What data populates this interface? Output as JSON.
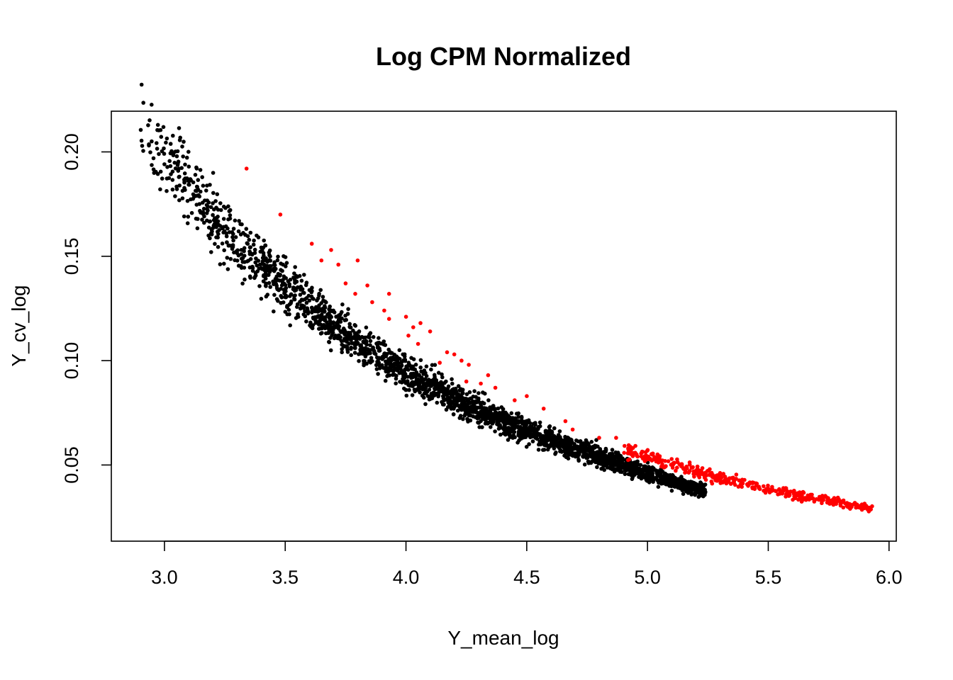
{
  "chart_data": {
    "type": "scatter",
    "title": "Log CPM Normalized",
    "xlabel": "Y_mean_log",
    "ylabel": "Y_cv_log",
    "xlim": [
      2.78,
      6.03
    ],
    "ylim": [
      0.0135,
      0.2195
    ],
    "xticks": [
      "3.0",
      "3.5",
      "4.0",
      "4.5",
      "5.0",
      "5.5",
      "6.0"
    ],
    "yticks": [
      "0.05",
      "0.10",
      "0.15",
      "0.20"
    ],
    "grid": false,
    "legend": "none",
    "series": [
      {
        "color": "#000000",
        "x_range": [
          2.9,
          5.24
        ],
        "trend": [
          [
            2.9,
            0.216
          ],
          [
            3.0,
            0.2
          ],
          [
            3.2,
            0.168
          ],
          [
            3.4,
            0.145
          ],
          [
            3.6,
            0.126
          ],
          [
            3.8,
            0.109
          ],
          [
            4.0,
            0.094
          ],
          [
            4.2,
            0.082
          ],
          [
            4.4,
            0.071
          ],
          [
            4.6,
            0.062
          ],
          [
            4.8,
            0.054
          ],
          [
            5.0,
            0.046
          ],
          [
            5.24,
            0.037
          ]
        ]
      },
      {
        "color": "#ff0000",
        "points": [
          [
            3.34,
            0.192
          ],
          [
            3.48,
            0.17
          ],
          [
            3.61,
            0.156
          ],
          [
            3.69,
            0.153
          ],
          [
            3.65,
            0.148
          ],
          [
            3.8,
            0.148
          ],
          [
            3.72,
            0.146
          ],
          [
            3.75,
            0.137
          ],
          [
            3.84,
            0.136
          ],
          [
            3.79,
            0.132
          ],
          [
            3.86,
            0.128
          ],
          [
            3.93,
            0.132
          ],
          [
            3.91,
            0.124
          ],
          [
            3.93,
            0.12
          ],
          [
            4.0,
            0.121
          ],
          [
            4.03,
            0.116
          ],
          [
            4.01,
            0.112
          ],
          [
            4.06,
            0.118
          ],
          [
            4.1,
            0.114
          ],
          [
            4.05,
            0.108
          ],
          [
            4.17,
            0.104
          ],
          [
            4.2,
            0.103
          ],
          [
            4.23,
            0.1
          ],
          [
            4.26,
            0.098
          ],
          [
            4.14,
            0.099
          ],
          [
            4.25,
            0.09
          ],
          [
            4.34,
            0.093
          ],
          [
            4.31,
            0.089
          ],
          [
            4.37,
            0.087
          ],
          [
            4.45,
            0.081
          ],
          [
            4.5,
            0.083
          ],
          [
            4.57,
            0.077
          ],
          [
            4.66,
            0.071
          ],
          [
            4.69,
            0.067
          ],
          [
            4.8,
            0.063
          ],
          [
            4.87,
            0.063
          ],
          [
            4.92,
            0.058
          ]
        ],
        "trend": [
          [
            4.9,
            0.057
          ],
          [
            5.0,
            0.054
          ],
          [
            5.2,
            0.047
          ],
          [
            5.4,
            0.041
          ],
          [
            5.6,
            0.036
          ],
          [
            5.8,
            0.032
          ],
          [
            5.93,
            0.029
          ]
        ]
      }
    ]
  }
}
